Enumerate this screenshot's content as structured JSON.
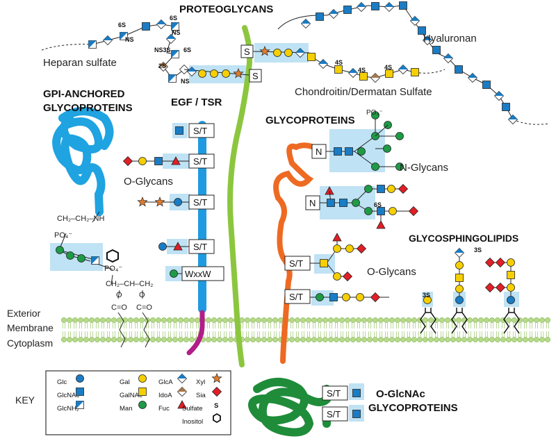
{
  "headings": {
    "proteoglycans": "PROTEOGLYCANS",
    "gpi_1": "GPI-ANCHORED",
    "gpi_2": "GLYCOPROTEINS",
    "egf_tsr": "EGF / TSR",
    "glycoproteins": "GLYCOPROTEINS",
    "glycosphingolipids": "GLYCOSPHINGOLIPIDS",
    "oglcnac_1": "O-GlcNAc",
    "oglcnac_2": "GLYCOPROTEINS"
  },
  "labels": {
    "heparan_sulfate": "Heparan sulfate",
    "hyaluronan": "Hyaluronan",
    "chondroitin": "Chondroitin/Dermatan Sulfate",
    "o_glycans_left": "O-Glycans",
    "n_glycans": "N-Glycans",
    "o_glycans_right": "O-Glycans",
    "exterior": "Exterior",
    "membrane": "Membrane",
    "cytoplasm": "Cytoplasm",
    "key": "KEY"
  },
  "mods": {
    "s6a": "6S",
    "ns1": "NS",
    "s6b": "6S",
    "ns2": "NS",
    "ns3s": "NS3S",
    "s6c": "6S",
    "s2": "2S",
    "ns4": "NS",
    "s4a": "4S",
    "s4b": "4S",
    "s4c": "4S",
    "s6n": "6S",
    "s3a": "3S",
    "s3b": "3S"
  },
  "boxes": {
    "S": "S",
    "ST": "S/T",
    "N": "N",
    "WxxW": "WxxW"
  },
  "gpi_chem": {
    "line1": "CH₂–CH₂–NH",
    "po4a": "PO₄⁻",
    "po4b": "PO₄⁻",
    "glycerol": "CH₂–CH–CH₂",
    "co1": "C=O",
    "co2": "C=O",
    "o1": "O",
    "o2": "O",
    "po4n": "PO₄⁻"
  },
  "key": [
    {
      "label": "Glc",
      "symbol": "blue-circle"
    },
    {
      "label": "GlcNAc",
      "symbol": "blue-square"
    },
    {
      "label": "GlcNH₂",
      "symbol": "half-blue-square"
    },
    {
      "label": "Gal",
      "symbol": "yellow-circle"
    },
    {
      "label": "GalNAc",
      "symbol": "yellow-square"
    },
    {
      "label": "Man",
      "symbol": "green-circle"
    },
    {
      "label": "GlcA",
      "symbol": "half-blue-diamond"
    },
    {
      "label": "IdoA",
      "symbol": "half-brown-diamond"
    },
    {
      "label": "Fuc",
      "symbol": "red-triangle"
    },
    {
      "label": "Xyl",
      "symbol": "orange-star"
    },
    {
      "label": "Sia",
      "symbol": "red-diamond"
    },
    {
      "label": "Sulfate",
      "symbol": "S"
    },
    {
      "label": "Inositol",
      "symbol": "hexagon"
    }
  ],
  "colors": {
    "blue": "#1a7cc4",
    "yellow": "#f6cf00",
    "green": "#1e9b46",
    "red": "#e01f26",
    "orange": "#e07b2c",
    "brown": "#a8774a",
    "highlight": "#bfe2f4",
    "gpi_protein": "#1fa3e1",
    "egf_protein": "#1f9ae0",
    "tm_green": "#8cc63f",
    "tm_magenta": "#b21e87",
    "orange_protein": "#ee6a22",
    "oglcnac_protein": "#1f8c3a",
    "membrane": "#b6d98a"
  }
}
